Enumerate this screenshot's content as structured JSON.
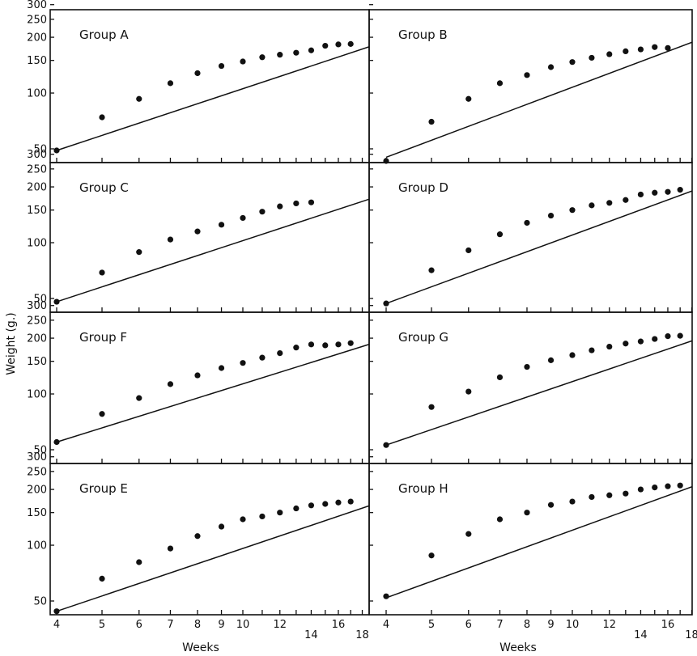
{
  "ylabel": "Weight (g.)",
  "xlabel": "Weeks",
  "style": {
    "ink": "#111111",
    "background": "#ffffff"
  },
  "y_ticks": [
    {
      "value": 50,
      "label": "50"
    },
    {
      "value": 100,
      "label": "100"
    },
    {
      "value": 150,
      "label": "150"
    },
    {
      "value": 200,
      "label": "200"
    },
    {
      "value": 250,
      "label": "250"
    },
    {
      "value": 300,
      "label": "300"
    }
  ],
  "x_ticks": [
    {
      "value": 4,
      "label": "4",
      "row": 1
    },
    {
      "value": 5,
      "label": "5",
      "row": 1
    },
    {
      "value": 6,
      "label": "6",
      "row": 1
    },
    {
      "value": 7,
      "label": "7",
      "row": 1
    },
    {
      "value": 8,
      "label": "8",
      "row": 1
    },
    {
      "value": 9,
      "label": "9",
      "row": 1
    },
    {
      "value": 10,
      "label": "10",
      "row": 1
    },
    {
      "value": 11,
      "label": "",
      "row": 1
    },
    {
      "value": 12,
      "label": "12",
      "row": 1
    },
    {
      "value": 13,
      "label": "",
      "row": 1
    },
    {
      "value": 14,
      "label": "14",
      "row": 2
    },
    {
      "value": 15,
      "label": "",
      "row": 1
    },
    {
      "value": 16,
      "label": "16",
      "row": 1
    },
    {
      "value": 17,
      "label": "",
      "row": 1
    },
    {
      "value": 18,
      "label": "18",
      "row": 2
    }
  ],
  "chart_data": [
    {
      "type": "scatter",
      "title": "Group A",
      "log_x": true,
      "log_y": true,
      "xlim": [
        4,
        30
      ],
      "ylim": [
        40,
        400
      ],
      "x": [
        4,
        5,
        6,
        7,
        8,
        9,
        10,
        11,
        12,
        13,
        14,
        15,
        16,
        17
      ],
      "y": [
        49,
        74,
        93,
        113,
        128,
        140,
        148,
        156,
        161,
        165,
        170,
        180,
        183,
        184
      ],
      "fit_line": {
        "x": [
          4,
          30
        ],
        "y": [
          49,
          265
        ]
      }
    },
    {
      "type": "scatter",
      "title": "Group B",
      "log_x": true,
      "log_y": true,
      "xlim": [
        4,
        30
      ],
      "ylim": [
        40,
        400
      ],
      "x": [
        4,
        5,
        6,
        7,
        8,
        9,
        10,
        11,
        12,
        13,
        14,
        15,
        16
      ],
      "y": [
        43,
        70,
        93,
        113,
        125,
        138,
        147,
        155,
        162,
        168,
        172,
        177,
        175
      ],
      "fit_line": {
        "x": [
          4,
          30
        ],
        "y": [
          45,
          305
        ]
      }
    },
    {
      "type": "scatter",
      "title": "Group C",
      "log_x": true,
      "log_y": true,
      "xlim": [
        4,
        30
      ],
      "ylim": [
        40,
        400
      ],
      "x": [
        4,
        5,
        6,
        7,
        8,
        9,
        10,
        11,
        12,
        13,
        14
      ],
      "y": [
        48,
        69,
        89,
        104,
        115,
        125,
        136,
        147,
        157,
        163,
        165
      ],
      "fit_line": {
        "x": [
          4,
          30
        ],
        "y": [
          48,
          255
        ]
      }
    },
    {
      "type": "scatter",
      "title": "Group D",
      "log_x": true,
      "log_y": true,
      "xlim": [
        4,
        30
      ],
      "ylim": [
        40,
        400
      ],
      "x": [
        4,
        5,
        6,
        7,
        8,
        9,
        10,
        11,
        12,
        13,
        14,
        15,
        16,
        17
      ],
      "y": [
        47,
        71,
        91,
        111,
        128,
        140,
        150,
        159,
        164,
        170,
        182,
        186,
        188,
        193
      ],
      "fit_line": {
        "x": [
          4,
          30
        ],
        "y": [
          47,
          305
        ]
      }
    },
    {
      "type": "scatter",
      "title": "Group F",
      "log_x": true,
      "log_y": true,
      "xlim": [
        4,
        30
      ],
      "ylim": [
        40,
        400
      ],
      "x": [
        4,
        5,
        6,
        7,
        8,
        9,
        10,
        11,
        12,
        13,
        14,
        15,
        16,
        17
      ],
      "y": [
        55,
        78,
        95,
        113,
        126,
        138,
        147,
        157,
        166,
        178,
        185,
        183,
        185,
        188
      ],
      "fit_line": {
        "x": [
          4,
          30
        ],
        "y": [
          55,
          270
        ]
      }
    },
    {
      "type": "scatter",
      "title": "Group G",
      "log_x": true,
      "log_y": true,
      "xlim": [
        4,
        30
      ],
      "ylim": [
        40,
        400
      ],
      "x": [
        4,
        5,
        6,
        7,
        8,
        9,
        10,
        11,
        12,
        13,
        14,
        15,
        16,
        17
      ],
      "y": [
        53,
        85,
        103,
        123,
        140,
        152,
        162,
        172,
        180,
        187,
        192,
        198,
        205,
        206
      ],
      "fit_line": {
        "x": [
          4,
          30
        ],
        "y": [
          53,
          300
        ]
      }
    },
    {
      "type": "scatter",
      "title": "Group E",
      "log_x": true,
      "log_y": true,
      "xlim": [
        4,
        30
      ],
      "ylim": [
        40,
        400
      ],
      "x": [
        4,
        5,
        6,
        7,
        8,
        9,
        10,
        11,
        12,
        13,
        14,
        15,
        16,
        17
      ],
      "y": [
        44,
        66,
        81,
        96,
        112,
        126,
        138,
        143,
        150,
        158,
        164,
        167,
        170,
        172
      ],
      "fit_line": {
        "x": [
          4,
          30
        ],
        "y": [
          44,
          245
        ]
      }
    },
    {
      "type": "scatter",
      "title": "Group H",
      "log_x": true,
      "log_y": true,
      "xlim": [
        4,
        30
      ],
      "ylim": [
        40,
        400
      ],
      "x": [
        4,
        5,
        6,
        7,
        8,
        9,
        10,
        11,
        12,
        13,
        14,
        15,
        16,
        17
      ],
      "y": [
        53,
        88,
        115,
        138,
        150,
        165,
        172,
        182,
        186,
        190,
        200,
        205,
        208,
        210
      ],
      "fit_line": {
        "x": [
          4,
          30
        ],
        "y": [
          52,
          330
        ]
      }
    }
  ]
}
